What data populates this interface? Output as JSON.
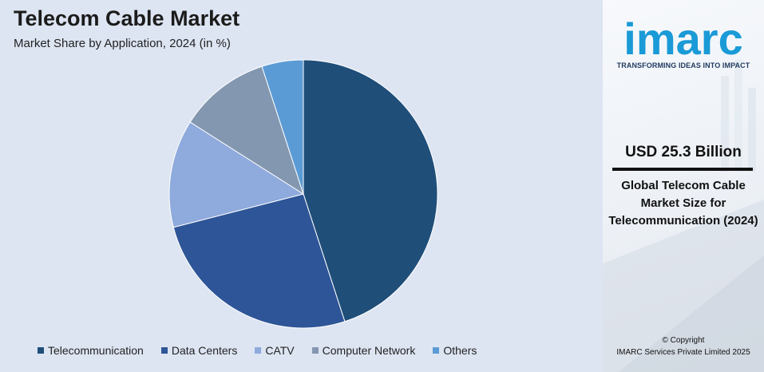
{
  "chart_data": {
    "type": "pie",
    "title": "Telecom Cable Market",
    "subtitle": "Market Share by Application, 2024 (in %)",
    "categories": [
      "Telecommunication",
      "Data Centers",
      "CATV",
      "Computer Network",
      "Others"
    ],
    "values": [
      45,
      26,
      13,
      11,
      5
    ],
    "colors": [
      "#1f4e79",
      "#2e5597",
      "#8faadc",
      "#8497b0",
      "#5b9bd5"
    ],
    "legend_position": "bottom"
  },
  "brand": {
    "logo_text": "imarc",
    "tagline": "TRANSFORMING IDEAS INTO IMPACT",
    "accent_color": "#1a9ad6"
  },
  "stat": {
    "value": "USD 25.3 Billion",
    "description": "Global Telecom Cable Market Size for Telecommunication (2024)"
  },
  "footer": {
    "copyright_line1": "© Copyright",
    "copyright_line2": "IMARC Services Private Limited 2025"
  }
}
